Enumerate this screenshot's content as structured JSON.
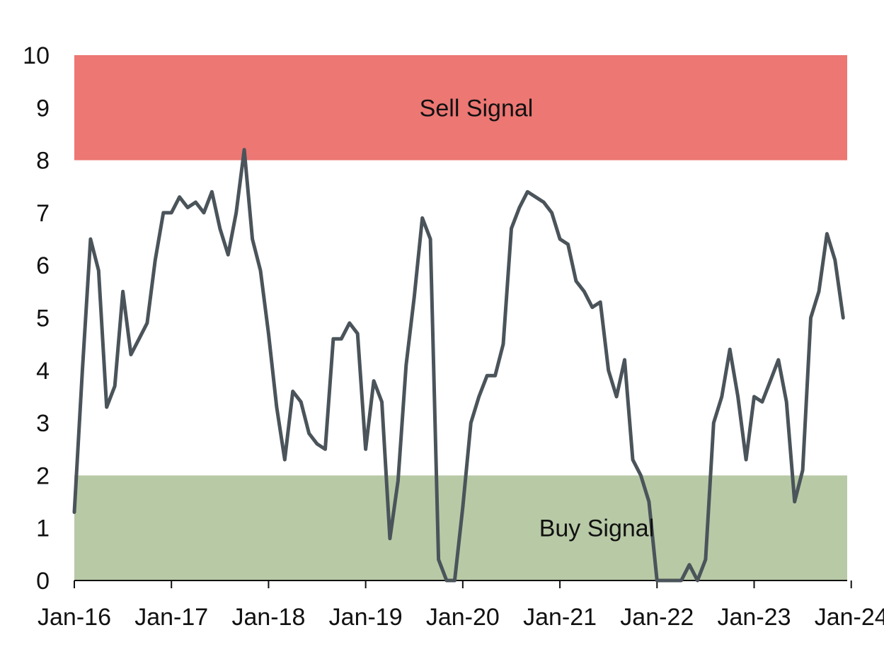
{
  "chart_data": {
    "type": "line",
    "title": "",
    "xlabel": "",
    "ylabel": "",
    "ylim": [
      0,
      10
    ],
    "yticks": [
      "0",
      "1",
      "2",
      "3",
      "4",
      "5",
      "6",
      "7",
      "8",
      "9",
      "10"
    ],
    "xticks": [
      "Jan-16",
      "Jan-17",
      "Jan-18",
      "Jan-19",
      "Jan-20",
      "Jan-21",
      "Jan-22",
      "Jan-23",
      "Jan-24"
    ],
    "grid": false,
    "legend": "none",
    "bands": [
      {
        "label": "Sell Signal",
        "from": 8,
        "to": 10,
        "color": "#ec7773"
      },
      {
        "label": "Buy Signal",
        "from": 0,
        "to": 2,
        "color": "#b8c9a6"
      }
    ],
    "line_color": "#4a545a",
    "series": [
      {
        "x": [
          "2016-01",
          "2016-02",
          "2016-03",
          "2016-04",
          "2016-05",
          "2016-06",
          "2016-07",
          "2016-08",
          "2016-09",
          "2016-10",
          "2016-11",
          "2016-12",
          "2017-01",
          "2017-02",
          "2017-03",
          "2017-04",
          "2017-05",
          "2017-06",
          "2017-07",
          "2017-08",
          "2017-09",
          "2017-10",
          "2017-11",
          "2017-12",
          "2018-01",
          "2018-02",
          "2018-03",
          "2018-04",
          "2018-05",
          "2018-06",
          "2018-07",
          "2018-08",
          "2018-09",
          "2018-10",
          "2018-11",
          "2018-12",
          "2019-01",
          "2019-02",
          "2019-03",
          "2019-04",
          "2019-05",
          "2019-06",
          "2019-07",
          "2019-08",
          "2019-09",
          "2019-10",
          "2019-11",
          "2019-12",
          "2020-01",
          "2020-02",
          "2020-03",
          "2020-04",
          "2020-05",
          "2020-06",
          "2020-07",
          "2020-08",
          "2020-09",
          "2020-10",
          "2020-11",
          "2020-12",
          "2021-01",
          "2021-02",
          "2021-03",
          "2021-04",
          "2021-05",
          "2021-06",
          "2021-07",
          "2021-08",
          "2021-09",
          "2021-10",
          "2021-11",
          "2021-12",
          "2022-01",
          "2022-02",
          "2022-03",
          "2022-04",
          "2022-05",
          "2022-06",
          "2022-07",
          "2022-08",
          "2022-09",
          "2022-10",
          "2022-11",
          "2022-12",
          "2023-01",
          "2023-02",
          "2023-03",
          "2023-04",
          "2023-05",
          "2023-06",
          "2023-07",
          "2023-08",
          "2023-09",
          "2023-10",
          "2023-11",
          "2023-12",
          "2024-01",
          "2024-02",
          "2024-03",
          "2024-04"
        ],
        "values": [
          1.3,
          4.0,
          6.5,
          5.9,
          3.3,
          3.7,
          5.5,
          4.3,
          4.6,
          4.9,
          6.1,
          7.0,
          7.0,
          7.3,
          7.1,
          7.2,
          7.0,
          7.4,
          6.7,
          6.2,
          7.0,
          8.2,
          6.5,
          5.9,
          4.7,
          3.3,
          2.3,
          3.6,
          3.4,
          2.8,
          2.6,
          2.5,
          4.6,
          4.6,
          4.9,
          4.7,
          2.5,
          3.8,
          3.4,
          0.8,
          1.9,
          4.1,
          5.4,
          6.9,
          6.5,
          0.4,
          0.0,
          0.0,
          1.4,
          3.0,
          3.5,
          3.9,
          3.9,
          4.5,
          6.7,
          7.1,
          7.4,
          7.3,
          7.2,
          7.0,
          6.5,
          6.4,
          5.7,
          5.5,
          5.2,
          5.3,
          4.0,
          3.5,
          4.2,
          2.3,
          2.0,
          1.5,
          0.0,
          0.0,
          0.0,
          0.0,
          0.3,
          0.0,
          0.4,
          3.0,
          3.5,
          4.4,
          3.5,
          2.3,
          3.5,
          3.4,
          3.8,
          4.2,
          3.4,
          1.5,
          2.1,
          5.0,
          5.5,
          6.6,
          6.1,
          5.0,
          null,
          null,
          null,
          null
        ]
      }
    ]
  }
}
